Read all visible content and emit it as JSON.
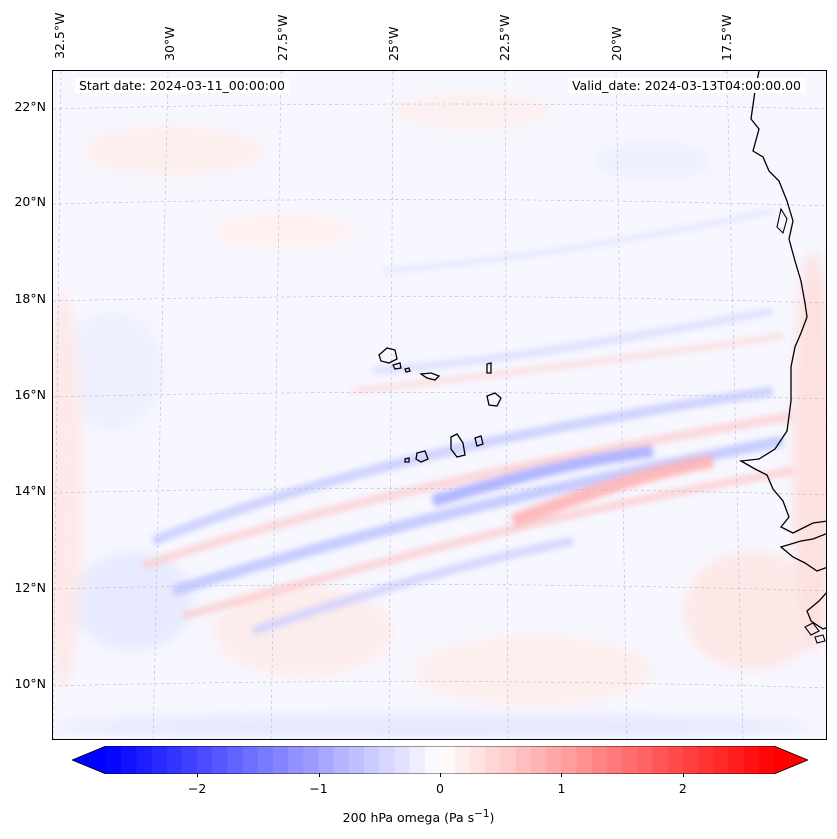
{
  "header": {
    "start_date": "Start date: 2024-03-11_00:00:00",
    "valid_date": "Valid_date: 2024-03-13T04:00:00.00"
  },
  "longitude_labels": [
    "32.5°W",
    "30°W",
    "27.5°W",
    "25°W",
    "22.5°W",
    "20°W",
    "17.5°W"
  ],
  "latitude_labels": [
    "22°N",
    "20°N",
    "18°N",
    "16°N",
    "14°N",
    "12°N",
    "10°N"
  ],
  "colorbar": {
    "ticks": [
      "−2",
      "−1",
      "0",
      "1",
      "2"
    ],
    "tick_values": [
      -2,
      -1,
      0,
      1,
      2
    ],
    "min": -2.75,
    "max": 2.75,
    "label": "200 hPa omega (Pa s",
    "label_sup": "−1",
    "label_end": ")",
    "colormap": "bwr",
    "color_low": "#0000ff",
    "color_mid": "#ffffff",
    "color_high": "#ff0000"
  },
  "field": {
    "variable": "omega",
    "level": "200 hPa"
  }
}
